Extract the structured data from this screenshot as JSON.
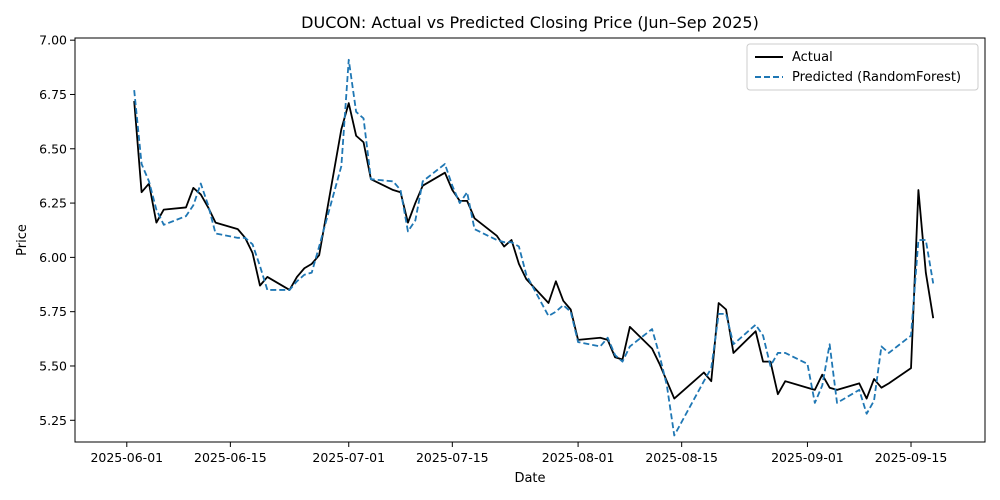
{
  "chart_data": {
    "type": "line",
    "title": "DUCON: Actual vs Predicted Closing Price (Jun–Sep 2025)",
    "xlabel": "Date",
    "ylabel": "Price",
    "xlim": [
      "2025-05-25",
      "2025-09-25"
    ],
    "ylim": [
      5.15,
      7.01
    ],
    "x_ticks": [
      "2025-06-01",
      "2025-06-15",
      "2025-07-01",
      "2025-07-15",
      "2025-08-01",
      "2025-08-15",
      "2025-09-01",
      "2025-09-15"
    ],
    "y_ticks": [
      5.25,
      5.5,
      5.75,
      6.0,
      6.25,
      6.5,
      6.75,
      7.0
    ],
    "y_tick_labels": [
      "5.25",
      "5.50",
      "5.75",
      "6.00",
      "6.25",
      "6.50",
      "6.75",
      "7.00"
    ],
    "grid": false,
    "legend_position": "top-right",
    "series": [
      {
        "name": "Actual",
        "color": "#000000",
        "style": "solid",
        "points": [
          [
            "2025-06-02",
            6.72
          ],
          [
            "2025-06-03",
            6.3
          ],
          [
            "2025-06-04",
            6.34
          ],
          [
            "2025-06-05",
            6.16
          ],
          [
            "2025-06-06",
            6.22
          ],
          [
            "2025-06-09",
            6.23
          ],
          [
            "2025-06-10",
            6.32
          ],
          [
            "2025-06-11",
            6.29
          ],
          [
            "2025-06-12",
            6.23
          ],
          [
            "2025-06-13",
            6.16
          ],
          [
            "2025-06-16",
            6.13
          ],
          [
            "2025-06-17",
            6.09
          ],
          [
            "2025-06-18",
            6.02
          ],
          [
            "2025-06-19",
            5.87
          ],
          [
            "2025-06-20",
            5.91
          ],
          [
            "2025-06-23",
            5.85
          ],
          [
            "2025-06-24",
            5.91
          ],
          [
            "2025-06-25",
            5.95
          ],
          [
            "2025-06-26",
            5.97
          ],
          [
            "2025-06-27",
            6.01
          ],
          [
            "2025-06-30",
            6.59
          ],
          [
            "2025-07-01",
            6.71
          ],
          [
            "2025-07-02",
            6.56
          ],
          [
            "2025-07-03",
            6.53
          ],
          [
            "2025-07-04",
            6.36
          ],
          [
            "2025-07-07",
            6.31
          ],
          [
            "2025-07-08",
            6.3
          ],
          [
            "2025-07-09",
            6.16
          ],
          [
            "2025-07-10",
            6.25
          ],
          [
            "2025-07-11",
            6.33
          ],
          [
            "2025-07-14",
            6.39
          ],
          [
            "2025-07-15",
            6.31
          ],
          [
            "2025-07-16",
            6.26
          ],
          [
            "2025-07-17",
            6.26
          ],
          [
            "2025-07-18",
            6.18
          ],
          [
            "2025-07-21",
            6.1
          ],
          [
            "2025-07-22",
            6.05
          ],
          [
            "2025-07-23",
            6.08
          ],
          [
            "2025-07-24",
            5.97
          ],
          [
            "2025-07-25",
            5.9
          ],
          [
            "2025-07-28",
            5.79
          ],
          [
            "2025-07-29",
            5.89
          ],
          [
            "2025-07-30",
            5.8
          ],
          [
            "2025-07-31",
            5.76
          ],
          [
            "2025-08-01",
            5.62
          ],
          [
            "2025-08-04",
            5.63
          ],
          [
            "2025-08-05",
            5.62
          ],
          [
            "2025-08-06",
            5.54
          ],
          [
            "2025-08-07",
            5.53
          ],
          [
            "2025-08-08",
            5.68
          ],
          [
            "2025-08-11",
            5.58
          ],
          [
            "2025-08-12",
            5.51
          ],
          [
            "2025-08-13",
            5.43
          ],
          [
            "2025-08-14",
            5.35
          ],
          [
            "2025-08-18",
            5.47
          ],
          [
            "2025-08-19",
            5.43
          ],
          [
            "2025-08-20",
            5.79
          ],
          [
            "2025-08-21",
            5.76
          ],
          [
            "2025-08-22",
            5.56
          ],
          [
            "2025-08-25",
            5.66
          ],
          [
            "2025-08-26",
            5.52
          ],
          [
            "2025-08-27",
            5.52
          ],
          [
            "2025-08-28",
            5.37
          ],
          [
            "2025-08-29",
            5.43
          ],
          [
            "2025-09-01",
            5.4
          ],
          [
            "2025-09-02",
            5.39
          ],
          [
            "2025-09-03",
            5.46
          ],
          [
            "2025-09-04",
            5.4
          ],
          [
            "2025-09-05",
            5.39
          ],
          [
            "2025-09-08",
            5.42
          ],
          [
            "2025-09-09",
            5.35
          ],
          [
            "2025-09-10",
            5.44
          ],
          [
            "2025-09-11",
            5.4
          ],
          [
            "2025-09-12",
            5.42
          ],
          [
            "2025-09-15",
            5.49
          ],
          [
            "2025-09-16",
            6.31
          ],
          [
            "2025-09-17",
            5.93
          ],
          [
            "2025-09-18",
            5.72
          ]
        ]
      },
      {
        "name": "Predicted (RandomForest)",
        "color": "#1f77b4",
        "style": "dashed",
        "points": [
          [
            "2025-06-02",
            6.77
          ],
          [
            "2025-06-03",
            6.43
          ],
          [
            "2025-06-04",
            6.35
          ],
          [
            "2025-06-05",
            6.22
          ],
          [
            "2025-06-06",
            6.15
          ],
          [
            "2025-06-09",
            6.19
          ],
          [
            "2025-06-10",
            6.24
          ],
          [
            "2025-06-11",
            6.34
          ],
          [
            "2025-06-12",
            6.24
          ],
          [
            "2025-06-13",
            6.11
          ],
          [
            "2025-06-16",
            6.09
          ],
          [
            "2025-06-17",
            6.09
          ],
          [
            "2025-06-18",
            6.06
          ],
          [
            "2025-06-19",
            5.96
          ],
          [
            "2025-06-20",
            5.85
          ],
          [
            "2025-06-23",
            5.85
          ],
          [
            "2025-06-24",
            5.89
          ],
          [
            "2025-06-25",
            5.92
          ],
          [
            "2025-06-26",
            5.93
          ],
          [
            "2025-06-27",
            6.05
          ],
          [
            "2025-06-30",
            6.42
          ],
          [
            "2025-07-01",
            6.91
          ],
          [
            "2025-07-02",
            6.67
          ],
          [
            "2025-07-03",
            6.64
          ],
          [
            "2025-07-04",
            6.36
          ],
          [
            "2025-07-07",
            6.35
          ],
          [
            "2025-07-08",
            6.31
          ],
          [
            "2025-07-09",
            6.12
          ],
          [
            "2025-07-10",
            6.17
          ],
          [
            "2025-07-11",
            6.35
          ],
          [
            "2025-07-14",
            6.43
          ],
          [
            "2025-07-15",
            6.33
          ],
          [
            "2025-07-16",
            6.25
          ],
          [
            "2025-07-17",
            6.3
          ],
          [
            "2025-07-18",
            6.13
          ],
          [
            "2025-07-21",
            6.08
          ],
          [
            "2025-07-22",
            6.07
          ],
          [
            "2025-07-23",
            6.07
          ],
          [
            "2025-07-24",
            6.05
          ],
          [
            "2025-07-25",
            5.92
          ],
          [
            "2025-07-28",
            5.73
          ],
          [
            "2025-07-29",
            5.75
          ],
          [
            "2025-07-30",
            5.78
          ],
          [
            "2025-07-31",
            5.75
          ],
          [
            "2025-08-01",
            5.61
          ],
          [
            "2025-08-04",
            5.59
          ],
          [
            "2025-08-05",
            5.63
          ],
          [
            "2025-08-06",
            5.55
          ],
          [
            "2025-08-07",
            5.52
          ],
          [
            "2025-08-08",
            5.59
          ],
          [
            "2025-08-11",
            5.67
          ],
          [
            "2025-08-12",
            5.55
          ],
          [
            "2025-08-13",
            5.41
          ],
          [
            "2025-08-14",
            5.18
          ],
          [
            "2025-08-18",
            5.43
          ],
          [
            "2025-08-19",
            5.49
          ],
          [
            "2025-08-20",
            5.74
          ],
          [
            "2025-08-21",
            5.74
          ],
          [
            "2025-08-22",
            5.6
          ],
          [
            "2025-08-25",
            5.69
          ],
          [
            "2025-08-26",
            5.64
          ],
          [
            "2025-08-27",
            5.5
          ],
          [
            "2025-08-28",
            5.56
          ],
          [
            "2025-08-29",
            5.56
          ],
          [
            "2025-09-01",
            5.51
          ],
          [
            "2025-09-02",
            5.33
          ],
          [
            "2025-09-03",
            5.41
          ],
          [
            "2025-09-04",
            5.6
          ],
          [
            "2025-09-05",
            5.33
          ],
          [
            "2025-09-08",
            5.39
          ],
          [
            "2025-09-09",
            5.28
          ],
          [
            "2025-09-10",
            5.34
          ],
          [
            "2025-09-11",
            5.59
          ],
          [
            "2025-09-12",
            5.56
          ],
          [
            "2025-09-15",
            5.64
          ],
          [
            "2025-09-16",
            6.08
          ],
          [
            "2025-09-17",
            6.08
          ],
          [
            "2025-09-18",
            5.88
          ]
        ]
      }
    ]
  }
}
